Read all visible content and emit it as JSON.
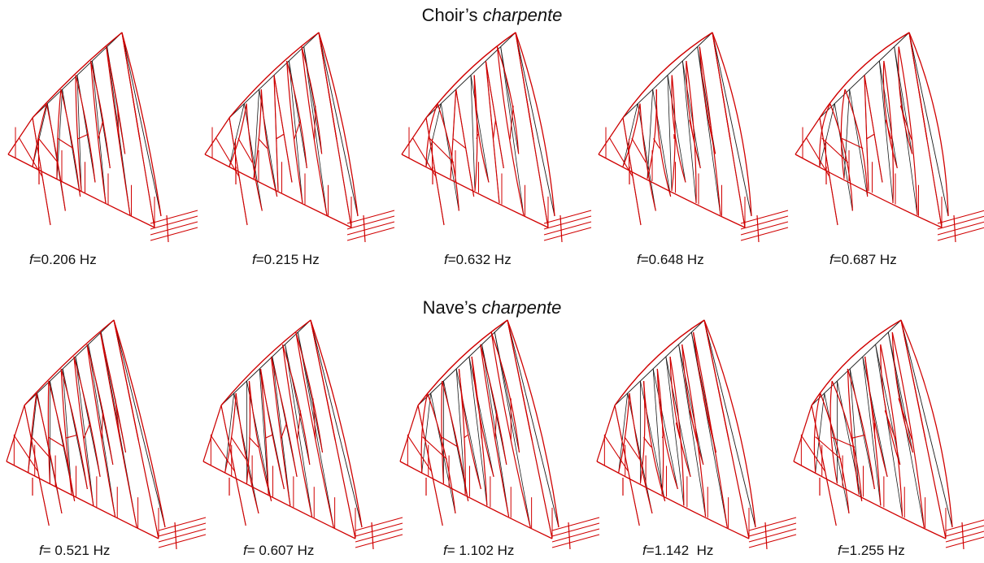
{
  "choir": {
    "title_prefix": "Choir’s ",
    "title_em": "charpente",
    "modes": [
      {
        "f_label": "f",
        "value": "=0.206 Hz"
      },
      {
        "f_label": "f",
        "value": "=0.215 Hz"
      },
      {
        "f_label": "f",
        "value": "=0.632 Hz"
      },
      {
        "f_label": "f",
        "value": "=0.648 Hz"
      },
      {
        "f_label": "f",
        "value": "=0.687 Hz"
      }
    ]
  },
  "nave": {
    "title_prefix": "Nave’s ",
    "title_em": "charpente",
    "modes": [
      {
        "f_label": "f",
        "value": "= 0.521 Hz"
      },
      {
        "f_label": "f",
        "value": "= 0.607 Hz"
      },
      {
        "f_label": "f",
        "value": "= 1.102 Hz"
      },
      {
        "f_label": "f",
        "value": "=1.142  Hz"
      },
      {
        "f_label": "f",
        "value": "=1.255 Hz"
      }
    ]
  },
  "colors": {
    "undeformed": "#1a1a1a",
    "deformed": "#d00000"
  }
}
